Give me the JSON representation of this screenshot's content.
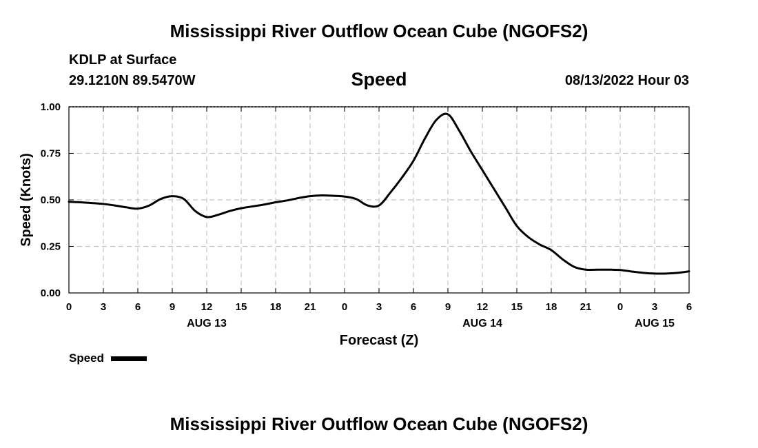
{
  "header": {
    "title_top": "Mississippi River Outflow Ocean Cube (NGOFS2)",
    "title_bottom": "Mississippi River Outflow Ocean Cube (NGOFS2)",
    "station": "KDLP at Surface",
    "location": "29.1210N  89.5470W",
    "datetime": "08/13/2022 Hour 03"
  },
  "chart_data": {
    "type": "line",
    "title": "Speed",
    "xlabel": "Forecast (Z)",
    "ylabel": "Speed (Knots)",
    "xlim": [
      0,
      54
    ],
    "ylim": [
      0,
      1
    ],
    "x_ticks": [
      0,
      3,
      6,
      9,
      12,
      15,
      18,
      21,
      24,
      27,
      30,
      33,
      36,
      39,
      42,
      45,
      48,
      51,
      54
    ],
    "x_tick_labels": [
      "0",
      "3",
      "6",
      "9",
      "12",
      "15",
      "18",
      "21",
      "0",
      "3",
      "6",
      "9",
      "12",
      "15",
      "18",
      "21",
      "0",
      "3",
      "6"
    ],
    "day_labels": [
      {
        "x": 12,
        "label": "AUG 13"
      },
      {
        "x": 36,
        "label": "AUG 14"
      },
      {
        "x": 51,
        "label": "AUG 15"
      }
    ],
    "y_ticks": [
      0,
      0.25,
      0.5,
      0.75,
      1.0
    ],
    "y_tick_labels": [
      "0.00",
      "0.25",
      "0.50",
      "0.75",
      "1.00"
    ],
    "grid": true,
    "legend": {
      "position": "bottom-left",
      "label": "Speed"
    },
    "series": [
      {
        "name": "Speed",
        "color": "#000000",
        "x": [
          0,
          1,
          2,
          3,
          4,
          5,
          6,
          7,
          8,
          9,
          10,
          11,
          12,
          13,
          14,
          15,
          16,
          17,
          18,
          19,
          20,
          21,
          22,
          23,
          24,
          25,
          26,
          27,
          28,
          29,
          30,
          31,
          32,
          33,
          34,
          35,
          36,
          37,
          38,
          39,
          40,
          41,
          42,
          43,
          44,
          45,
          46,
          47,
          48,
          49,
          50,
          51,
          52,
          53,
          54
        ],
        "y": [
          0.49,
          0.487,
          0.483,
          0.478,
          0.47,
          0.46,
          0.453,
          0.47,
          0.505,
          0.52,
          0.505,
          0.44,
          0.408,
          0.42,
          0.44,
          0.455,
          0.465,
          0.475,
          0.487,
          0.497,
          0.51,
          0.52,
          0.524,
          0.522,
          0.518,
          0.505,
          0.47,
          0.47,
          0.54,
          0.62,
          0.71,
          0.83,
          0.93,
          0.96,
          0.87,
          0.76,
          0.66,
          0.56,
          0.46,
          0.36,
          0.3,
          0.26,
          0.23,
          0.18,
          0.14,
          0.125,
          0.125,
          0.125,
          0.123,
          0.115,
          0.108,
          0.104,
          0.104,
          0.108,
          0.116
        ]
      }
    ]
  }
}
